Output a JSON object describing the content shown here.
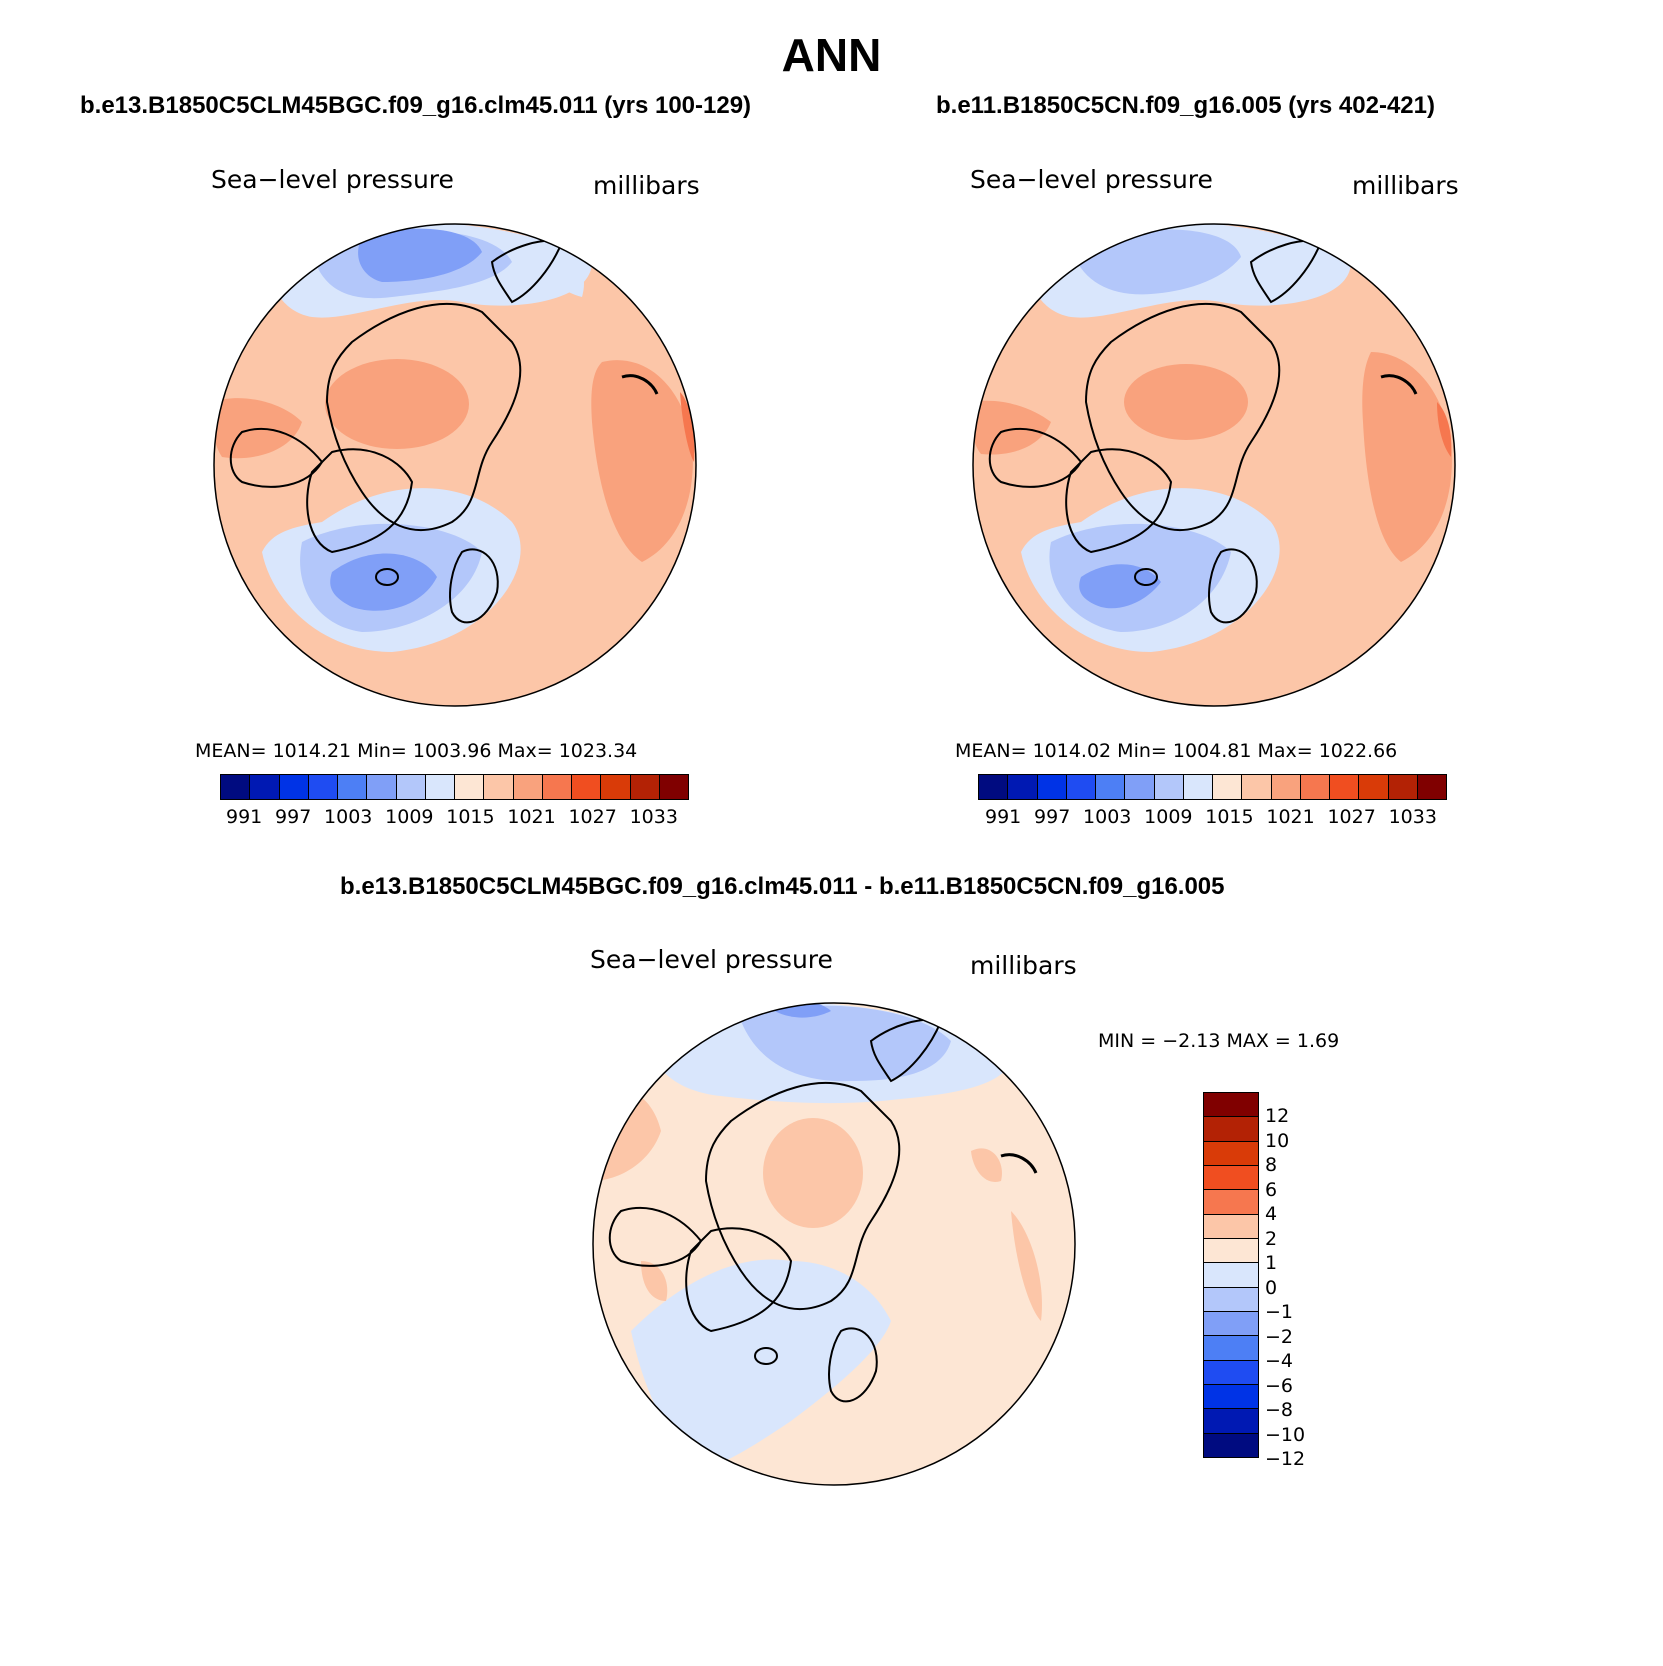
{
  "title": "ANN",
  "panels": [
    {
      "case_title": "b.e13.B1850C5CLM45BGC.f09_g16.clm45.011 (yrs 100-129)",
      "variable": "Sea−level pressure",
      "units": "millibars",
      "stats": "MEAN=  1014.21   Min=  1003.96   Max=  1023.34",
      "colorbar_ticks": [
        "991",
        "997",
        "1003",
        "1009",
        "1015",
        "1021",
        "1027",
        "1033"
      ]
    },
    {
      "case_title": "b.e11.B1850C5CN.f09_g16.005 (yrs 402-421)",
      "variable": "Sea−level pressure",
      "units": "millibars",
      "stats": "MEAN=  1014.02   Min=  1004.81   Max=  1022.66",
      "colorbar_ticks": [
        "991",
        "997",
        "1003",
        "1009",
        "1015",
        "1021",
        "1027",
        "1033"
      ]
    }
  ],
  "diff": {
    "case_title": "b.e13.B1850C5CLM45BGC.f09_g16.clm45.011 - b.e11.B1850C5CN.f09_g16.005",
    "variable": "Sea−level pressure",
    "units": "millibars",
    "stats": "MIN =   −2.13  MAX =     1.69",
    "colorbar_ticks": [
      "12",
      "10",
      "8",
      "6",
      "4",
      "2",
      "1",
      "0",
      "−1",
      "−2",
      "−4",
      "−6",
      "−8",
      "−10",
      "−12"
    ]
  },
  "colors": {
    "abs_scale": [
      "#000b80",
      "#0019b3",
      "#0033e6",
      "#1f4cf2",
      "#4d7ff5",
      "#809ff7",
      "#b3c7fa",
      "#d9e6fc",
      "#fde6d4",
      "#fcc6a8",
      "#f9a27d",
      "#f6774f",
      "#f04e20",
      "#d93b08",
      "#b32205",
      "#800000"
    ],
    "diff_scale": [
      "#800000",
      "#b32205",
      "#d93b08",
      "#f04e20",
      "#f6774f",
      "#fcc6a8",
      "#fde6d4",
      "#d9e6fc",
      "#b3c7fa",
      "#809ff7",
      "#4d7ff5",
      "#1f4cf2",
      "#0033e6",
      "#0019b3",
      "#000b80"
    ]
  }
}
